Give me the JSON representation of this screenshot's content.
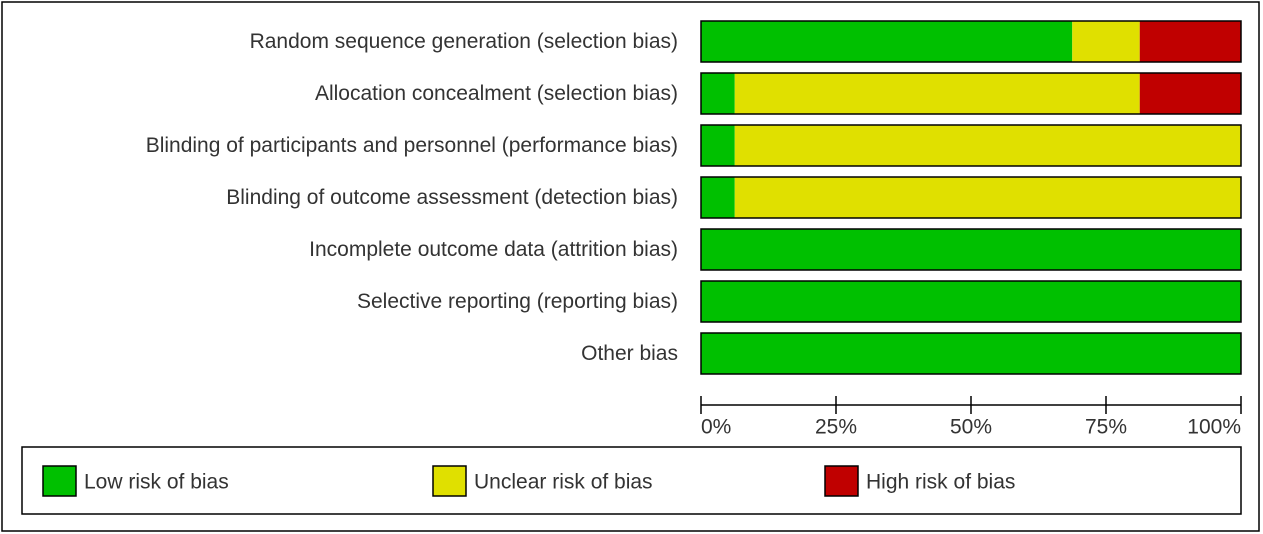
{
  "chart_data": {
    "type": "stacked-bar-horizontal",
    "categories": [
      "Random sequence generation (selection bias)",
      "Allocation concealment (selection bias)",
      "Blinding of participants and personnel (performance bias)",
      "Blinding of outcome assessment (detection bias)",
      "Incomplete outcome data (attrition bias)",
      "Selective reporting (reporting bias)",
      "Other bias"
    ],
    "series": [
      {
        "name": "Low risk of bias",
        "color": "#00c000",
        "values": [
          68.75,
          6.25,
          6.25,
          6.25,
          100,
          100,
          100
        ]
      },
      {
        "name": "Unclear risk of bias",
        "color": "#e0e000",
        "values": [
          12.5,
          75,
          93.75,
          93.75,
          0,
          0,
          0
        ]
      },
      {
        "name": "High risk of bias",
        "color": "#c00000",
        "values": [
          18.75,
          18.75,
          0,
          0,
          0,
          0,
          0
        ]
      }
    ],
    "xlim": [
      0,
      100
    ],
    "xticks": [
      {
        "value": 0,
        "label": "0%"
      },
      {
        "value": 25,
        "label": "25%"
      },
      {
        "value": 50,
        "label": "50%"
      },
      {
        "value": 75,
        "label": "75%"
      },
      {
        "value": 100,
        "label": "100%"
      }
    ]
  }
}
